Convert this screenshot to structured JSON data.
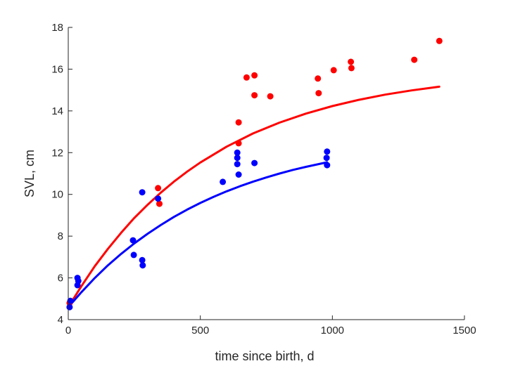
{
  "chart_data": {
    "type": "scatter",
    "title": "",
    "xlabel": "time since birth, d",
    "ylabel": "SVL, cm",
    "xlim": [
      0,
      1500
    ],
    "ylim": [
      4,
      18
    ],
    "xticks": [
      0,
      500,
      1000,
      1500
    ],
    "yticks": [
      4,
      6,
      8,
      10,
      12,
      14,
      16,
      18
    ],
    "grid": false,
    "legend": "none",
    "series": [
      {
        "color": "#ff0000",
        "points": [
          [
            5,
            4.8
          ],
          [
            340,
            10.3
          ],
          [
            345,
            9.55
          ],
          [
            645,
            13.45
          ],
          [
            645,
            12.45
          ],
          [
            675,
            15.6
          ],
          [
            705,
            15.7
          ],
          [
            705,
            14.75
          ],
          [
            765,
            14.7
          ],
          [
            945,
            15.55
          ],
          [
            948,
            14.85
          ],
          [
            1005,
            15.95
          ],
          [
            1070,
            16.35
          ],
          [
            1072,
            16.05
          ],
          [
            1310,
            16.45
          ],
          [
            1405,
            17.35
          ]
        ],
        "fit": [
          [
            0,
            4.6
          ],
          [
            50,
            5.61
          ],
          [
            100,
            6.55
          ],
          [
            150,
            7.39
          ],
          [
            200,
            8.16
          ],
          [
            250,
            8.87
          ],
          [
            300,
            9.5
          ],
          [
            350,
            10.08
          ],
          [
            400,
            10.61
          ],
          [
            450,
            11.09
          ],
          [
            500,
            11.53
          ],
          [
            600,
            12.29
          ],
          [
            700,
            12.92
          ],
          [
            800,
            13.44
          ],
          [
            900,
            13.87
          ],
          [
            1000,
            14.23
          ],
          [
            1100,
            14.53
          ],
          [
            1200,
            14.78
          ],
          [
            1300,
            14.98
          ],
          [
            1405,
            15.16
          ]
        ]
      },
      {
        "color": "#0000ff",
        "points": [
          [
            5,
            4.6
          ],
          [
            8,
            4.9
          ],
          [
            35,
            6.0
          ],
          [
            38,
            5.85
          ],
          [
            35,
            5.65
          ],
          [
            245,
            7.8
          ],
          [
            248,
            7.1
          ],
          [
            280,
            6.85
          ],
          [
            282,
            6.6
          ],
          [
            280,
            10.1
          ],
          [
            340,
            9.8
          ],
          [
            585,
            10.6
          ],
          [
            640,
            12.0
          ],
          [
            640,
            11.75
          ],
          [
            640,
            11.45
          ],
          [
            645,
            10.95
          ],
          [
            705,
            11.5
          ],
          [
            980,
            12.05
          ],
          [
            978,
            11.75
          ],
          [
            980,
            11.4
          ]
        ],
        "fit": [
          [
            0,
            4.6
          ],
          [
            50,
            5.32
          ],
          [
            100,
            5.99
          ],
          [
            150,
            6.6
          ],
          [
            200,
            7.15
          ],
          [
            250,
            7.65
          ],
          [
            300,
            8.11
          ],
          [
            350,
            8.53
          ],
          [
            400,
            8.92
          ],
          [
            450,
            9.27
          ],
          [
            500,
            9.59
          ],
          [
            550,
            9.88
          ],
          [
            600,
            10.15
          ],
          [
            650,
            10.39
          ],
          [
            700,
            10.61
          ],
          [
            750,
            10.81
          ],
          [
            800,
            11.0
          ],
          [
            850,
            11.17
          ],
          [
            900,
            11.32
          ],
          [
            980,
            11.54
          ]
        ]
      }
    ]
  }
}
